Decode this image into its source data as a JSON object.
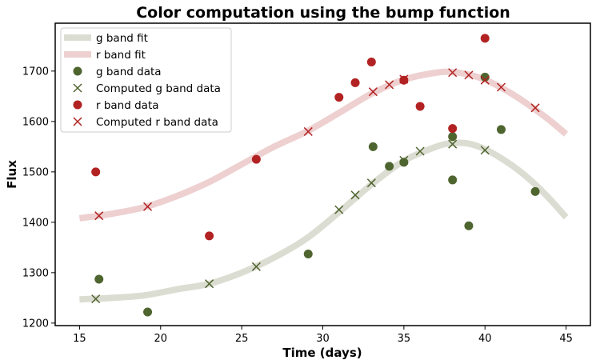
{
  "chart_data": {
    "type": "scatter",
    "title": "Color computation using the bump function",
    "xlabel": "Time (days)",
    "ylabel": "Flux",
    "xlim": [
      13.5,
      46.5
    ],
    "ylim": [
      1195,
      1795
    ],
    "xticks": [
      15,
      20,
      25,
      30,
      35,
      40,
      45
    ],
    "yticks": [
      1200,
      1300,
      1400,
      1500,
      1600,
      1700
    ],
    "grid": false,
    "legend_position": "top-left",
    "colors": {
      "g_fit": "#dcddd2",
      "r_fit": "#eed0d0",
      "g_data": "#4f6530",
      "r_data": "#b22222"
    },
    "series": [
      {
        "name": "g band fit",
        "kind": "line",
        "color_key": "g_fit",
        "points": [
          [
            15,
            1247
          ],
          [
            17,
            1250
          ],
          [
            19,
            1255
          ],
          [
            21,
            1267
          ],
          [
            23,
            1278
          ],
          [
            25,
            1300
          ],
          [
            27,
            1330
          ],
          [
            29,
            1368
          ],
          [
            31,
            1420
          ],
          [
            33,
            1475
          ],
          [
            35,
            1522
          ],
          [
            37,
            1550
          ],
          [
            38,
            1557
          ],
          [
            39,
            1556
          ],
          [
            40,
            1545
          ],
          [
            41,
            1527
          ],
          [
            42,
            1505
          ],
          [
            43,
            1478
          ],
          [
            44,
            1446
          ],
          [
            45,
            1410
          ]
        ]
      },
      {
        "name": "r band fit",
        "kind": "line",
        "color_key": "r_fit",
        "points": [
          [
            15,
            1408
          ],
          [
            17,
            1417
          ],
          [
            19,
            1430
          ],
          [
            21,
            1452
          ],
          [
            23,
            1480
          ],
          [
            25,
            1515
          ],
          [
            27,
            1550
          ],
          [
            29,
            1580
          ],
          [
            31,
            1617
          ],
          [
            33,
            1655
          ],
          [
            35,
            1683
          ],
          [
            37,
            1697
          ],
          [
            38,
            1698
          ],
          [
            39,
            1693
          ],
          [
            40,
            1683
          ],
          [
            41,
            1667
          ],
          [
            42,
            1648
          ],
          [
            43,
            1626
          ],
          [
            44,
            1602
          ],
          [
            45,
            1575
          ]
        ]
      },
      {
        "name": "g band data",
        "kind": "marker-circle",
        "color_key": "g_data",
        "points": [
          [
            16.2,
            1287
          ],
          [
            19.2,
            1222
          ],
          [
            29.1,
            1337
          ],
          [
            33.1,
            1550
          ],
          [
            34.1,
            1511
          ],
          [
            35.0,
            1519
          ],
          [
            38.0,
            1484
          ],
          [
            38.0,
            1570
          ],
          [
            39.0,
            1393
          ],
          [
            40.0,
            1688
          ],
          [
            41.0,
            1584
          ],
          [
            43.1,
            1461
          ]
        ]
      },
      {
        "name": "Computed g band data",
        "kind": "marker-x",
        "color_key": "g_data",
        "points": [
          [
            16.0,
            1248
          ],
          [
            23.0,
            1278
          ],
          [
            25.9,
            1312
          ],
          [
            31.0,
            1425
          ],
          [
            32.0,
            1454
          ],
          [
            33.0,
            1478
          ],
          [
            35.0,
            1523
          ],
          [
            36.0,
            1541
          ],
          [
            38.0,
            1555
          ],
          [
            40.0,
            1543
          ]
        ]
      },
      {
        "name": "r band data",
        "kind": "marker-circle",
        "color_key": "r_data",
        "points": [
          [
            16.0,
            1500
          ],
          [
            23.0,
            1373
          ],
          [
            25.9,
            1525
          ],
          [
            31.0,
            1648
          ],
          [
            32.0,
            1677
          ],
          [
            33.0,
            1718
          ],
          [
            35.0,
            1682
          ],
          [
            36.0,
            1630
          ],
          [
            38.0,
            1586
          ],
          [
            40.0,
            1765
          ]
        ]
      },
      {
        "name": "Computed r band data",
        "kind": "marker-x",
        "color_key": "r_data",
        "points": [
          [
            16.2,
            1413
          ],
          [
            19.2,
            1431
          ],
          [
            29.1,
            1580
          ],
          [
            33.1,
            1659
          ],
          [
            34.1,
            1673
          ],
          [
            35.0,
            1684
          ],
          [
            38.0,
            1697
          ],
          [
            39.0,
            1692
          ],
          [
            40.0,
            1682
          ],
          [
            41.0,
            1668
          ],
          [
            43.1,
            1627
          ]
        ]
      }
    ]
  }
}
